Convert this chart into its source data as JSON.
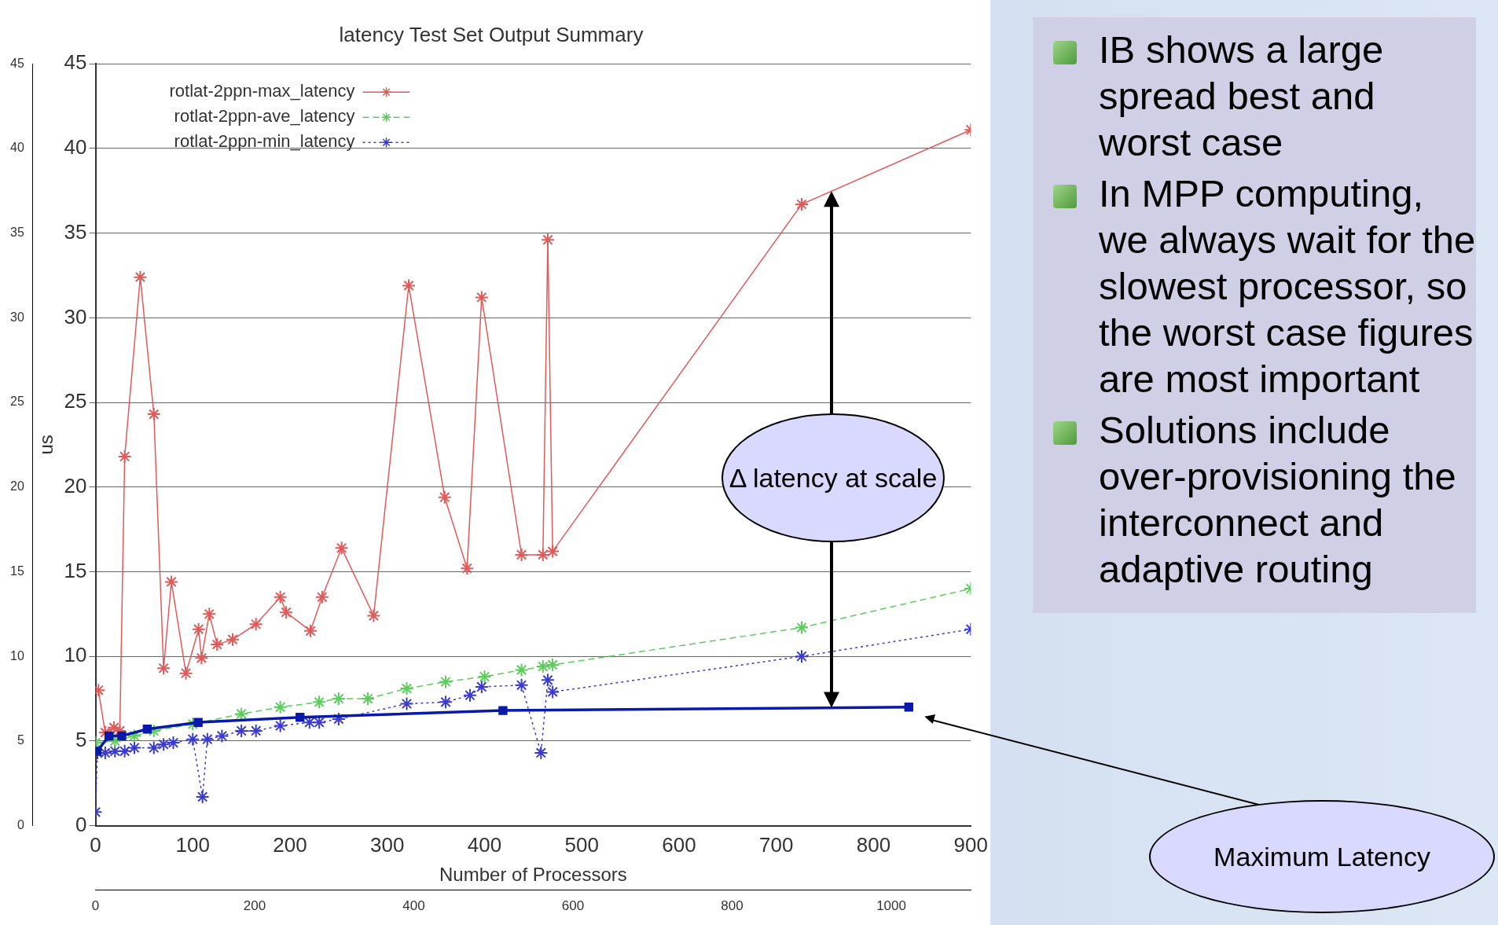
{
  "chart_data": {
    "type": "line",
    "title": "latency Test Set Output Summary",
    "xlabel": "Number of Processors",
    "ylabel": "us",
    "xlim": [
      0,
      900
    ],
    "xticks": [
      0,
      100,
      200,
      300,
      400,
      500,
      600,
      700,
      800,
      900
    ],
    "x2lim": [
      0,
      1100
    ],
    "x2ticks": [
      0,
      200,
      400,
      600,
      800,
      1000
    ],
    "ylim": [
      0,
      45
    ],
    "yticks": [
      0,
      5,
      10,
      15,
      20,
      25,
      30,
      35,
      40,
      45
    ],
    "y2lim": [
      0,
      45
    ],
    "y2ticks": [
      0,
      5,
      10,
      15,
      20,
      25,
      30,
      35,
      40,
      45
    ],
    "grid": "y",
    "legend": "top left",
    "series": [
      {
        "name": "rotlat-2ppn-max_latency",
        "color": "#e05a5a",
        "marker": "cross",
        "line_style": "solid",
        "x": [
          3,
          10,
          19,
          25,
          30,
          46,
          60,
          70,
          78,
          93,
          106,
          109,
          117,
          125,
          141,
          165,
          190,
          196,
          221,
          233,
          253,
          286,
          322,
          359,
          382,
          397,
          438,
          460,
          465,
          470,
          726,
          900
        ],
        "values": [
          8.0,
          5.5,
          5.8,
          5.6,
          21.8,
          32.4,
          24.3,
          9.3,
          14.4,
          9.0,
          11.6,
          9.9,
          12.5,
          10.7,
          11.0,
          11.9,
          13.5,
          12.6,
          11.5,
          13.5,
          16.4,
          12.4,
          31.9,
          19.4,
          15.2,
          31.2,
          16.0,
          16.0,
          34.6,
          16.2,
          36.7,
          41.1
        ]
      },
      {
        "name": "rotlat-2ppn-ave_latency",
        "color": "#5ccc5c",
        "marker": "cross",
        "line_style": "dashed",
        "x": [
          0,
          20,
          40,
          60,
          100,
          150,
          190,
          230,
          250,
          280,
          320,
          360,
          400,
          438,
          460,
          470,
          726,
          900
        ],
        "values": [
          4.9,
          5.0,
          5.3,
          5.6,
          6.0,
          6.6,
          7.0,
          7.3,
          7.5,
          7.5,
          8.1,
          8.5,
          8.8,
          9.2,
          9.4,
          9.5,
          11.7,
          14.0
        ]
      },
      {
        "name": "rotlat-2ppn-min_latency",
        "color": "#3a3ad0",
        "marker": "cross",
        "line_style": "dotted",
        "x": [
          0,
          2,
          10,
          20,
          30,
          40,
          60,
          70,
          80,
          100,
          110,
          115,
          130,
          150,
          165,
          190,
          220,
          230,
          250,
          320,
          360,
          385,
          397,
          438,
          458,
          465,
          470,
          726,
          900
        ],
        "values": [
          0.8,
          4.3,
          4.3,
          4.4,
          4.4,
          4.6,
          4.6,
          4.8,
          4.9,
          5.1,
          1.7,
          5.1,
          5.3,
          5.6,
          5.6,
          5.9,
          6.1,
          6.1,
          6.3,
          7.2,
          7.3,
          7.7,
          8.2,
          8.3,
          4.3,
          8.6,
          7.9,
          10.0,
          11.6
        ]
      },
      {
        "color": "#0a1aa8",
        "marker": "square",
        "line_style": "solid",
        "axis": "x2",
        "x": [
          2,
          17,
          33,
          65,
          129,
          257,
          512,
          1022
        ],
        "values": [
          4.4,
          5.3,
          5.3,
          5.7,
          6.1,
          6.4,
          6.8,
          7.0
        ]
      }
    ],
    "annotations": [
      "Δ latency at scale",
      "Maximum Latency",
      "IB shows a large spread best and worst case",
      "In MPP computing, we always wait for the slowest processor, so the worst case figures are most important",
      "Solutions include over-provisioning the interconnect and adaptive routing"
    ]
  }
}
